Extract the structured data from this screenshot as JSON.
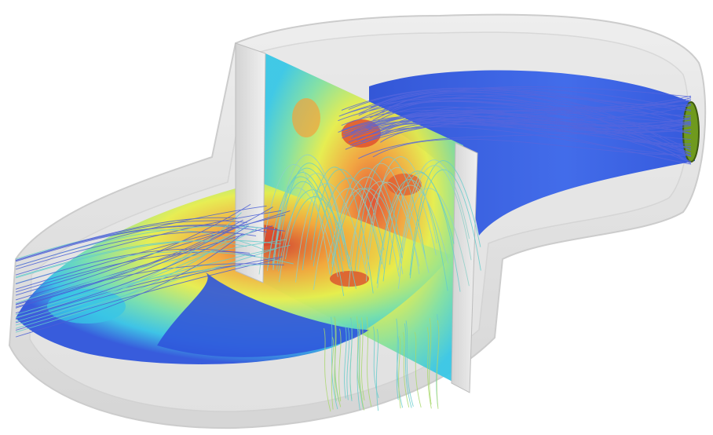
{
  "scene": {
    "subject": "cfd-flow-visualization",
    "colors": {
      "background": "#ffffff",
      "shell": "#d8d8d8",
      "shell_edge": "#bfbfbf",
      "channel_blue": "#2f57e0",
      "streamline_blue": "#5566dd",
      "streamline_cyan": "#66cccc",
      "outlet": "#6f9a1e",
      "baffle": "#e8e8e8",
      "colormap": [
        "#2e4fd8",
        "#33c6e8",
        "#7de0a8",
        "#e6ee4a",
        "#f3a33a",
        "#d9452b"
      ]
    }
  }
}
